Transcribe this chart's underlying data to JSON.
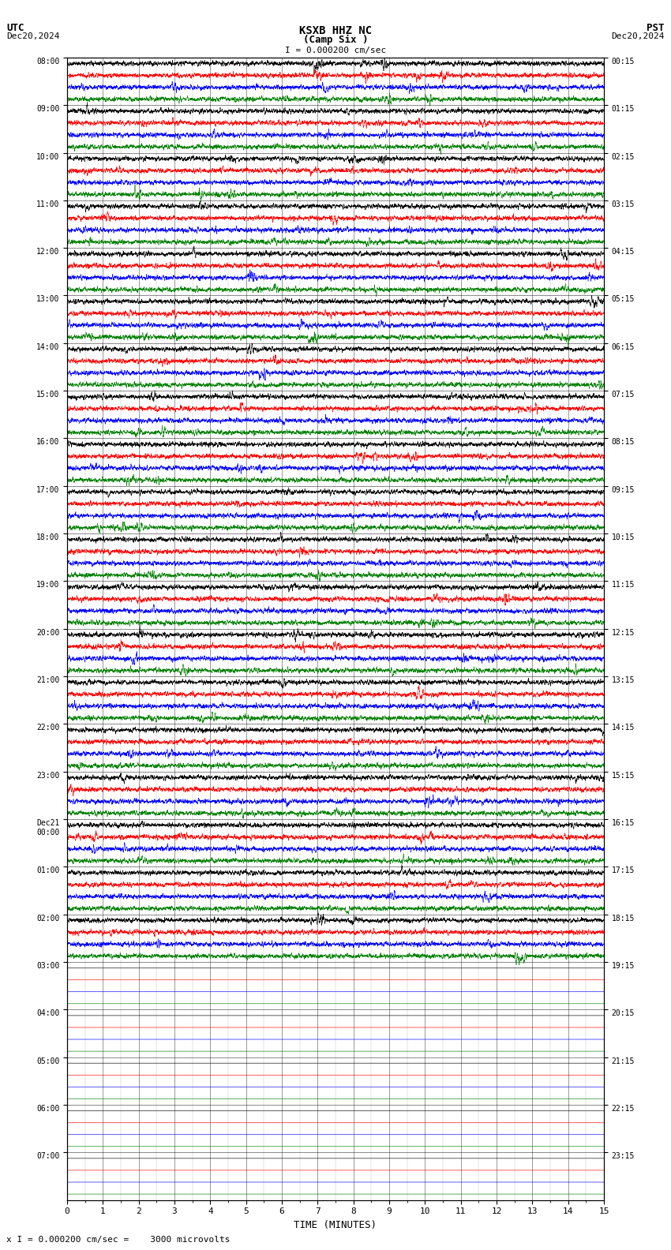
{
  "title_line1": "KSXB HHZ NC",
  "title_line2": "(Camp Six )",
  "scale_label": "I = 0.000200 cm/sec",
  "utc_label": "UTC",
  "pst_label": "PST",
  "date_left": "Dec20,2024",
  "date_right": "Dec20,2024",
  "bottom_label": "x I = 0.000200 cm/sec =    3000 microvolts",
  "xlabel": "TIME (MINUTES)",
  "xlim": [
    0,
    15
  ],
  "xticks": [
    0,
    1,
    2,
    3,
    4,
    5,
    6,
    7,
    8,
    9,
    10,
    11,
    12,
    13,
    14,
    15
  ],
  "left_ytick_labels": [
    "08:00",
    "09:00",
    "10:00",
    "11:00",
    "12:00",
    "13:00",
    "14:00",
    "15:00",
    "16:00",
    "17:00",
    "18:00",
    "19:00",
    "20:00",
    "21:00",
    "22:00",
    "23:00",
    "Dec21\n00:00",
    "01:00",
    "02:00",
    "03:00",
    "04:00",
    "05:00",
    "06:00",
    "07:00"
  ],
  "right_ytick_labels": [
    "00:15",
    "01:15",
    "02:15",
    "03:15",
    "04:15",
    "05:15",
    "06:15",
    "07:15",
    "08:15",
    "09:15",
    "10:15",
    "11:15",
    "12:15",
    "13:15",
    "14:15",
    "15:15",
    "16:15",
    "17:15",
    "18:15",
    "19:15",
    "20:15",
    "21:15",
    "22:15",
    "23:15"
  ],
  "n_rows": 24,
  "traces_per_row": 4,
  "trace_colors": [
    "black",
    "red",
    "blue",
    "green"
  ],
  "bg_color": "white",
  "fig_width": 8.5,
  "fig_height": 15.84,
  "dpi": 100,
  "lw": 0.4,
  "active_rows": 19,
  "seed": 42
}
